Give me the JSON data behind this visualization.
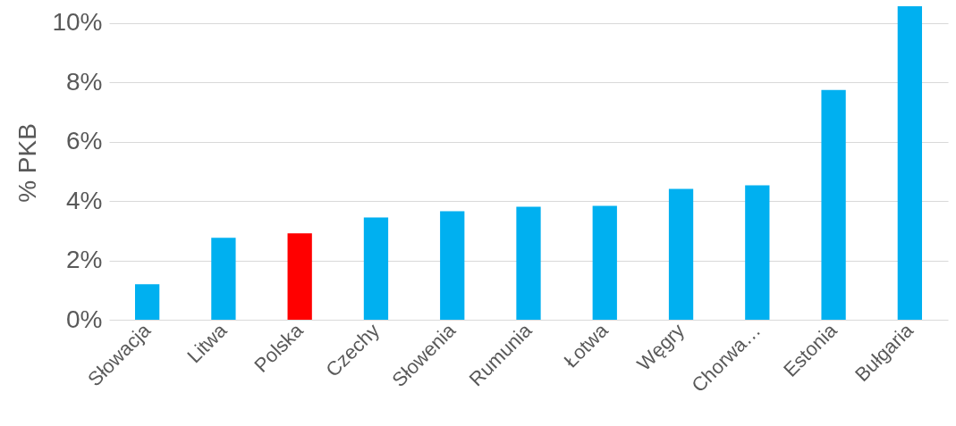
{
  "chart_data": {
    "type": "bar",
    "ylabel": "% PKB",
    "categories": [
      "Słowacja",
      "Litwa",
      "Polska",
      "Czechy",
      "Słowenia",
      "Rumunia",
      "Łotwa",
      "Węgry",
      "Chorwa…",
      "Estonia",
      "Bułgaria"
    ],
    "values": [
      1.2,
      2.76,
      2.91,
      3.45,
      3.66,
      3.81,
      3.84,
      4.41,
      4.53,
      7.75,
      10.57
    ],
    "colors": [
      "#00b0f0",
      "#00b0f0",
      "#ff0000",
      "#00b0f0",
      "#00b0f0",
      "#00b0f0",
      "#00b0f0",
      "#00b0f0",
      "#00b0f0",
      "#00b0f0",
      "#00b0f0"
    ],
    "ylim": [
      0,
      10.6
    ],
    "yticks": [
      {
        "value": 0,
        "label": "0%"
      },
      {
        "value": 2,
        "label": "2%"
      },
      {
        "value": 4,
        "label": "4%"
      },
      {
        "value": 6,
        "label": "6%"
      },
      {
        "value": 8,
        "label": "8%"
      },
      {
        "value": 10,
        "label": "10%"
      }
    ],
    "grid": "y"
  }
}
